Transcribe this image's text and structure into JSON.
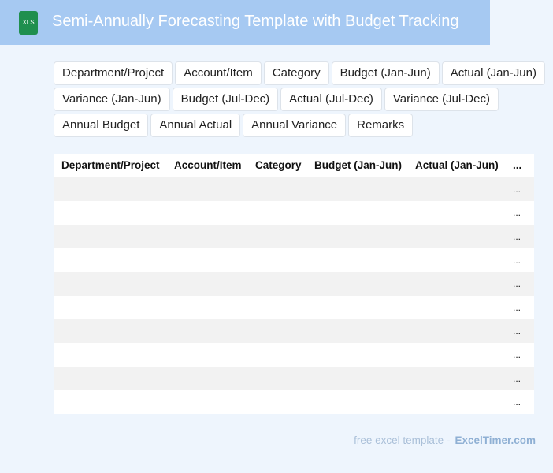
{
  "header": {
    "icon": "XLS",
    "title": "Semi-Annually Forecasting Template with Budget Tracking"
  },
  "tags": [
    "Department/Project",
    "Account/Item",
    "Category",
    "Budget (Jan-Jun)",
    "Actual (Jan-Jun)",
    "Variance (Jan-Jun)",
    "Budget (Jul-Dec)",
    "Actual (Jul-Dec)",
    "Variance (Jul-Dec)",
    "Annual Budget",
    "Annual Actual",
    "Annual Variance",
    "Remarks"
  ],
  "table": {
    "columns": [
      "Department/Project",
      "Account/Item",
      "Category",
      "Budget (Jan-Jun)",
      "Actual (Jan-Jun)",
      "..."
    ],
    "rows": [
      [
        "..."
      ],
      [
        "..."
      ],
      [
        "..."
      ],
      [
        "..."
      ],
      [
        "..."
      ],
      [
        "..."
      ],
      [
        "..."
      ],
      [
        "..."
      ],
      [
        "..."
      ],
      [
        "..."
      ]
    ]
  },
  "footer": {
    "text": "free excel template -",
    "site": "ExcelTimer.com"
  }
}
